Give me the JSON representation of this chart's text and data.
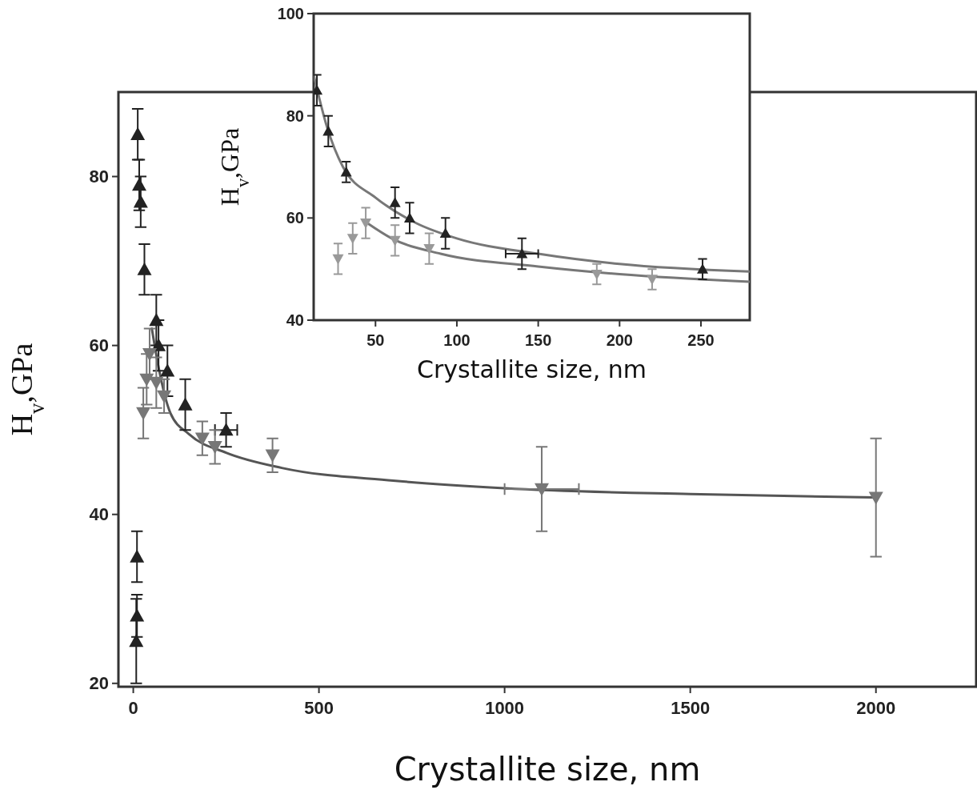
{
  "chart_data": [
    {
      "type": "scatter",
      "xlabel": "Crystallite size, nm",
      "ylabel": "H$_{v}$,GPa",
      "xlim": [
        -40,
        2270
      ],
      "ylim": [
        19.6,
        90
      ],
      "xticks": [
        0,
        500,
        1000,
        1500,
        2000
      ],
      "yticks": [
        20,
        40,
        60,
        80
      ],
      "series": [
        {
          "color": "#222222",
          "marker": "triangle",
          "x": [
            12,
            16,
            20,
            30,
            62,
            68,
            92,
            140,
            250,
            10,
            10,
            8
          ],
          "values": [
            85,
            79,
            77,
            69,
            63,
            60,
            57,
            53,
            50,
            35,
            28,
            25
          ],
          "errors": [
            3,
            3,
            3,
            3,
            3,
            3,
            3,
            3,
            2,
            3,
            2.5,
            5
          ],
          "xerrors": [
            null,
            null,
            null,
            null,
            null,
            null,
            null,
            null,
            30,
            null,
            null,
            null
          ]
        },
        {
          "color": "#777777",
          "marker": "triangle_down",
          "x": [
            27,
            36,
            44,
            62,
            83,
            186,
            220,
            375,
            1100,
            2000
          ],
          "values": [
            52,
            56,
            59,
            55.6,
            54,
            49,
            48,
            47,
            43,
            42
          ],
          "errors": [
            3,
            3,
            3,
            3,
            2,
            2,
            2,
            2,
            5,
            7
          ],
          "xerrors": [
            null,
            null,
            null,
            null,
            null,
            null,
            null,
            null,
            100,
            null
          ]
        },
        {
          "type": "line",
          "color": "#555555",
          "x": [
            50,
            70,
            100,
            150,
            250,
            400,
            700,
            1000,
            1500,
            2000
          ],
          "values": [
            62,
            57,
            52,
            49.5,
            47.3,
            45.5,
            44,
            43.1,
            42.4,
            42
          ]
        }
      ]
    },
    {
      "type": "scatter",
      "xlabel": "Crystallite size, nm",
      "ylabel": "H$_{v}$,GPa",
      "xlim": [
        12,
        280
      ],
      "ylim": [
        40,
        100
      ],
      "xticks": [
        50,
        100,
        150,
        200,
        250
      ],
      "yticks": [
        40,
        60,
        80,
        100
      ],
      "series": [
        {
          "color": "#222222",
          "marker": "triangle",
          "x": [
            14,
            21,
            32,
            62,
            71,
            93,
            140,
            251
          ],
          "values": [
            85,
            77,
            69,
            63,
            60,
            57,
            53,
            50
          ],
          "errors": [
            3,
            3,
            2,
            3,
            3,
            3,
            3,
            2
          ],
          "xerrors": [
            null,
            null,
            null,
            null,
            null,
            null,
            10,
            null
          ]
        },
        {
          "color": "#999999",
          "marker": "triangle_down",
          "x": [
            27,
            36,
            44,
            62,
            83,
            186,
            220
          ],
          "values": [
            52,
            56,
            59,
            55.6,
            54,
            49,
            48
          ],
          "errors": [
            3,
            3,
            3,
            3,
            3,
            2,
            2
          ]
        },
        {
          "type": "line",
          "color": "#777777",
          "x": [
            12,
            20,
            30,
            50,
            75,
            100,
            150,
            200,
            280
          ],
          "values": [
            88,
            78,
            70,
            64,
            59,
            56,
            53,
            51,
            49.5
          ]
        },
        {
          "type": "line",
          "color": "#777777",
          "x": [
            45,
            60,
            90,
            150,
            200,
            280
          ],
          "values": [
            59,
            56,
            53,
            50.5,
            49,
            47.5
          ]
        }
      ]
    }
  ]
}
